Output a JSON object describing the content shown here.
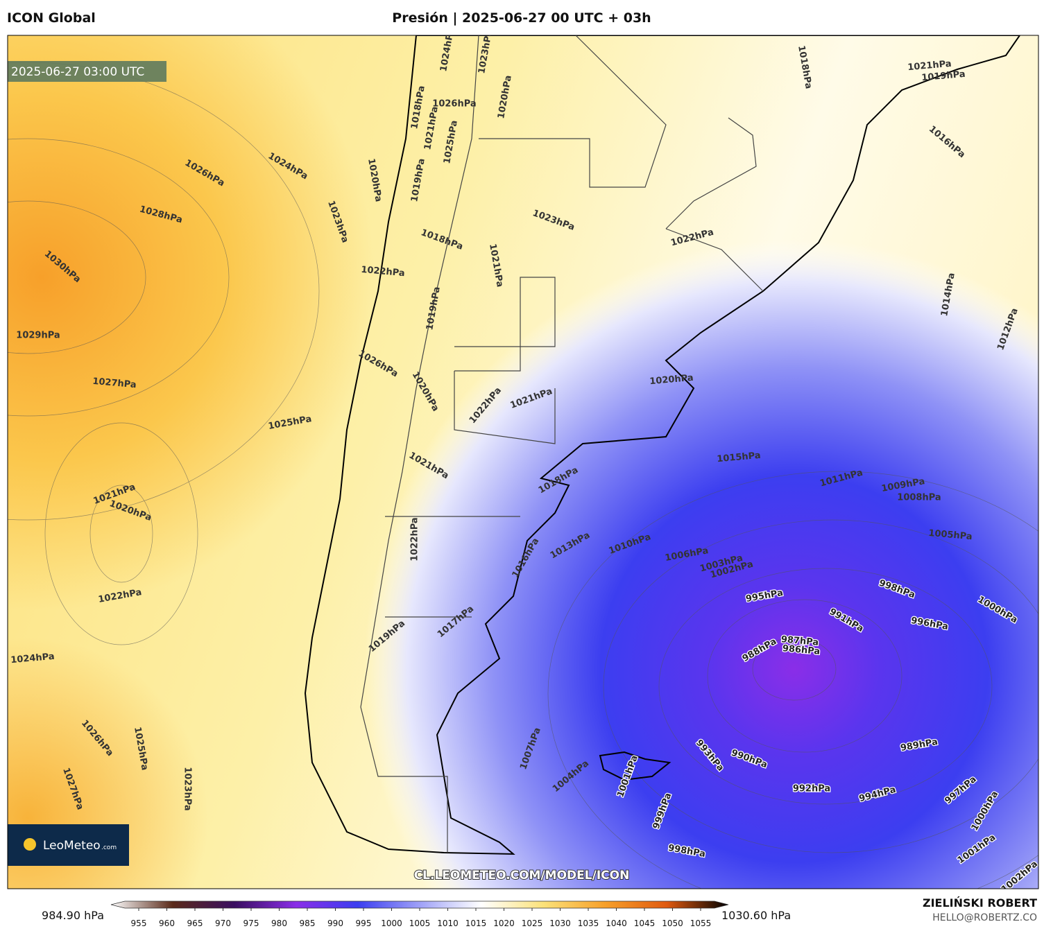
{
  "header": {
    "model": "ICON Global",
    "title": "Presión | 2025-06-27 00 UTC + 03h"
  },
  "map": {
    "timestamp": "2025-06-27 03:00 UTC",
    "watermark": "CL.LEOMETEO.COM/MODEL/ICON",
    "logo": {
      "name": "LeoMeteo",
      "suffix": ".com"
    },
    "isobar_labels": [
      "1026hPa",
      "1024hPa",
      "1028hPa",
      "1030hPa",
      "1029hPa",
      "1027hPa",
      "1025hPa",
      "1023hPa",
      "1020hPa",
      "1022hPa",
      "1026hPa",
      "1021hPa",
      "1020hPa",
      "1022hPa",
      "1024hPa",
      "1026hPa",
      "1027hPa",
      "1025hPa",
      "1023hPa",
      "1018hPa",
      "1026hPa",
      "1021hPa",
      "1025hPa",
      "1019hPa",
      "1023hPa",
      "1018hPa",
      "1021hPa",
      "1019hPa",
      "1020hPa",
      "1022hPa",
      "1021hPa",
      "1020hPa",
      "1022hPa",
      "1021hPa",
      "1018hPa",
      "1015hPa",
      "1011hPa",
      "1009hPa",
      "1008hPa",
      "1005hPa",
      "1016hPa",
      "1014hPa",
      "1012hPa",
      "1018hPa",
      "1021hPa",
      "1019hPa",
      "1024hPa",
      "1023hPa",
      "1020hPa",
      "1013hPa",
      "1010hPa",
      "1006hPa",
      "1003hPa",
      "1002hPa",
      "1016hPa",
      "1022hPa",
      "1017hPa",
      "1019hPa",
      "995hPa",
      "991hPa",
      "998hPa",
      "996hPa",
      "1000hPa",
      "988hPa",
      "987hPa",
      "986hPa",
      "989hPa",
      "990hPa",
      "993hPa",
      "992hPa",
      "994hPa",
      "997hPa",
      "1000hPa",
      "1001hPa",
      "1002hPa",
      "998hPa",
      "999hPa",
      "1001hPa",
      "1004hPa",
      "1007hPa"
    ]
  },
  "colorbar": {
    "min_label": "984.90 hPa",
    "max_label": "1030.60 hPa",
    "ticks": [
      955,
      960,
      965,
      970,
      975,
      980,
      985,
      990,
      995,
      1000,
      1005,
      1010,
      1015,
      1020,
      1025,
      1030,
      1035,
      1040,
      1045,
      1050,
      1055
    ]
  },
  "footer": {
    "author": "ZIELIŃSKI ROBERT",
    "email": "HELLO@ROBERTZ.CO"
  }
}
